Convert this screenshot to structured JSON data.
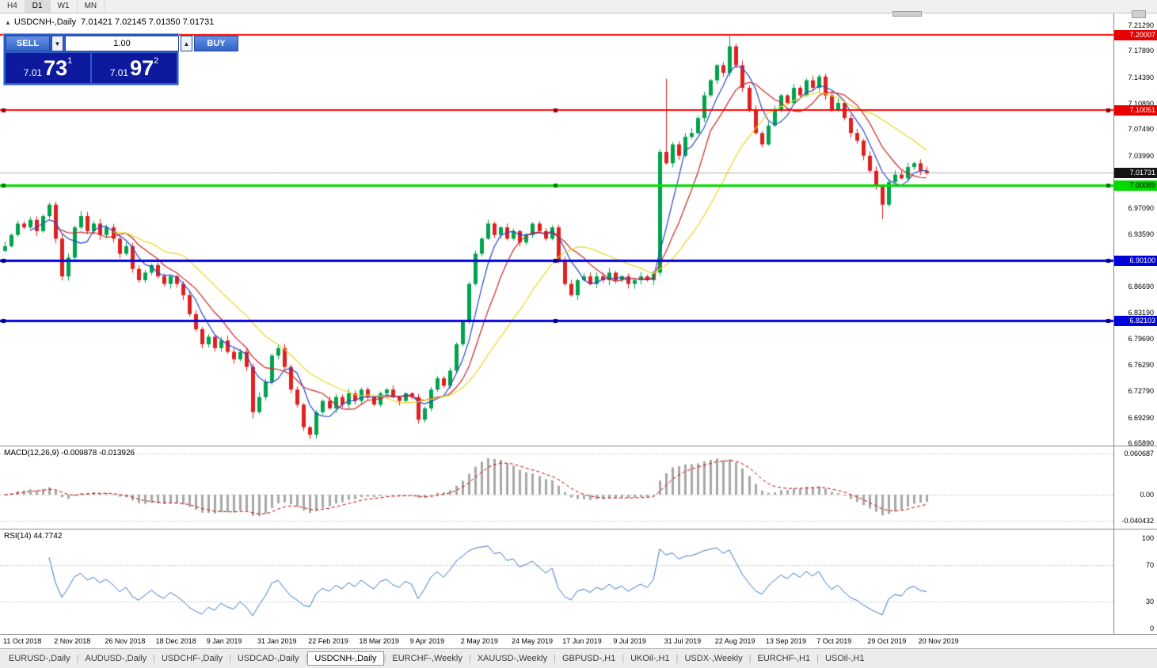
{
  "toolbar": {
    "timeframes": [
      {
        "label": "H4",
        "active": false
      },
      {
        "label": "D1",
        "active": true
      },
      {
        "label": "W1",
        "active": false
      },
      {
        "label": "MN",
        "active": false
      }
    ]
  },
  "chart_header": {
    "collapse_icon": "▲",
    "title": "USDCNH-,Daily",
    "ohlc": "7.01421 7.02145 7.01350 7.01731"
  },
  "trade_panel": {
    "sell_label": "SELL",
    "buy_label": "BUY",
    "volume": "1.00",
    "down_arrow": "▼",
    "up_arrow": "▲",
    "sell_price": {
      "small": "7.01",
      "big": "73",
      "sup": "1"
    },
    "buy_price": {
      "small": "7.01",
      "big": "97",
      "sup": "2"
    }
  },
  "price_axis": {
    "ticks": [
      {
        "text": "7.21290",
        "price": 7.2129
      },
      {
        "text": "7.17890",
        "price": 7.1789
      },
      {
        "text": "7.14390",
        "price": 7.1439
      },
      {
        "text": "7.10890",
        "price": 7.1089
      },
      {
        "text": "7.07490",
        "price": 7.0749
      },
      {
        "text": "7.03990",
        "price": 7.0399
      },
      {
        "text": "6.97090",
        "price": 6.9709
      },
      {
        "text": "6.93590",
        "price": 6.9359
      },
      {
        "text": "6.86690",
        "price": 6.8669
      },
      {
        "text": "6.83190",
        "price": 6.8319
      },
      {
        "text": "6.79690",
        "price": 6.7969
      },
      {
        "text": "6.76290",
        "price": 6.7629
      },
      {
        "text": "6.72790",
        "price": 6.7279
      },
      {
        "text": "6.69290",
        "price": 6.6929
      },
      {
        "text": "6.65890",
        "price": 6.6589
      }
    ],
    "tags": [
      {
        "text": "7.20007",
        "price": 7.20007,
        "bg": "#e80000",
        "fg": "#ffffff"
      },
      {
        "text": "7.10051",
        "price": 7.10051,
        "bg": "#e80000",
        "fg": "#ffffff"
      },
      {
        "text": "7.01731",
        "price": 7.01731,
        "bg": "#141414",
        "fg": "#ffffff"
      },
      {
        "text": "7.00089",
        "price": 7.00089,
        "bg": "#00dc00",
        "fg": "#000000"
      },
      {
        "text": "6.90100",
        "price": 6.901,
        "bg": "#0000d8",
        "fg": "#ffffff"
      },
      {
        "text": "6.82103",
        "price": 6.82103,
        "bg": "#0000d8",
        "fg": "#ffffff"
      }
    ]
  },
  "chart_data": {
    "type": "candlestick",
    "symbol": "USDCNH",
    "timeframe": "Daily",
    "y_range": [
      6.6557,
      7.2286
    ],
    "current_price": 7.01731,
    "candle_up_color": "#00a24e",
    "candle_down_color": "#de2020",
    "closes": [
      6.92,
      6.935,
      6.95,
      6.945,
      6.955,
      6.94,
      6.96,
      6.975,
      6.93,
      6.88,
      6.905,
      6.945,
      6.96,
      6.94,
      6.95,
      6.935,
      6.945,
      6.93,
      6.91,
      6.92,
      6.89,
      6.875,
      6.885,
      6.895,
      6.88,
      6.87,
      6.88,
      6.87,
      6.855,
      6.83,
      6.81,
      6.79,
      6.8,
      6.785,
      6.795,
      6.78,
      6.77,
      6.78,
      6.76,
      6.7,
      6.72,
      6.74,
      6.775,
      6.785,
      6.76,
      6.73,
      6.71,
      6.68,
      6.67,
      6.7,
      6.715,
      6.705,
      6.72,
      6.71,
      6.725,
      6.715,
      6.73,
      6.72,
      6.71,
      6.725,
      6.73,
      6.72,
      6.715,
      6.725,
      6.72,
      6.69,
      6.705,
      6.73,
      6.745,
      6.735,
      6.755,
      6.79,
      6.82,
      6.87,
      6.91,
      6.93,
      6.95,
      6.935,
      6.945,
      6.93,
      6.94,
      6.925,
      6.935,
      6.95,
      6.94,
      6.93,
      6.945,
      6.9,
      6.87,
      6.855,
      6.875,
      6.88,
      6.87,
      6.88,
      6.875,
      6.885,
      6.875,
      6.88,
      6.87,
      6.875,
      6.88,
      6.875,
      6.885,
      7.045,
      7.03,
      7.055,
      7.04,
      7.065,
      7.07,
      7.09,
      7.12,
      7.14,
      7.16,
      7.15,
      7.185,
      7.16,
      7.13,
      7.1,
      7.07,
      7.055,
      7.08,
      7.1,
      7.12,
      7.11,
      7.13,
      7.12,
      7.14,
      7.13,
      7.145,
      7.12,
      7.1,
      7.11,
      7.09,
      7.07,
      7.06,
      7.04,
      7.02,
      7.0,
      6.975,
      7.005,
      7.015,
      7.01,
      7.025,
      7.03,
      7.02,
      7.017
    ],
    "spikes": [
      {
        "i": 39,
        "low": 6.6915
      },
      {
        "i": 48,
        "low": 6.6645
      },
      {
        "i": 104,
        "high": 7.142
      },
      {
        "i": 114,
        "high": 7.199
      },
      {
        "i": 138,
        "low": 6.956
      }
    ],
    "moving_averages": [
      {
        "period": 5,
        "color": "#2a46c8"
      },
      {
        "period": 9,
        "color": "#cd2626"
      },
      {
        "period": 18,
        "color": "#e8d820"
      }
    ],
    "levels": [
      {
        "price": 7.20007,
        "color": "#ff0000",
        "width": 2,
        "selected": false
      },
      {
        "price": 7.10051,
        "color": "#ff0000",
        "width": 2,
        "selected": true
      },
      {
        "price": 7.00089,
        "color": "#00dd00",
        "width": 3,
        "selected": true
      },
      {
        "price": 6.901,
        "color": "#0000e0",
        "width": 3,
        "selected": true
      },
      {
        "price": 6.82103,
        "color": "#0000e0",
        "width": 3,
        "selected": true
      }
    ],
    "x_labels": [
      "11 Oct 2018",
      "2 Nov 2018",
      "26 Nov 2018",
      "18 Dec 2018",
      "9 Jan 2019",
      "31 Jan 2019",
      "22 Feb 2019",
      "18 Mar 2019",
      "9 Apr 2019",
      "2 May 2019",
      "24 May 2019",
      "17 Jun 2019",
      "9 Jul 2019",
      "31 Jul 2019",
      "22 Aug 2019",
      "13 Sep 2019",
      "7 Oct 2019",
      "29 Oct 2019",
      "20 Nov 2019"
    ]
  },
  "indicators": {
    "macd": {
      "label": "MACD(12,26,9)",
      "values": "-0.009878 -0.013926",
      "ticks": [
        "0.060687",
        "0.00",
        "-0.040432"
      ],
      "bar_color": "#a8a8a8",
      "signal_color": "#cc0000"
    },
    "rsi": {
      "label": "RSI(14)",
      "value": "44.7742",
      "ticks": [
        "100",
        "70",
        "30",
        "0"
      ],
      "levels": [
        70,
        30
      ],
      "line_color": "#3a78c8"
    }
  },
  "tabs": [
    {
      "label": "EURUSD-,Daily",
      "active": false
    },
    {
      "label": "AUDUSD-,Daily",
      "active": false
    },
    {
      "label": "USDCHF-,Daily",
      "active": false
    },
    {
      "label": "USDCAD-,Daily",
      "active": false
    },
    {
      "label": "USDCNH-,Daily",
      "active": true
    },
    {
      "label": "EURCHF-,Weekly",
      "active": false
    },
    {
      "label": "XAUUSD-,Weekly",
      "active": false
    },
    {
      "label": "GBPUSD-,H1",
      "active": false
    },
    {
      "label": "UKOil-,H1",
      "active": false
    },
    {
      "label": "USDX-,Weekly",
      "active": false
    },
    {
      "label": "EURCHF-,H1",
      "active": false
    },
    {
      "label": "USOil-,H1",
      "active": false
    }
  ]
}
